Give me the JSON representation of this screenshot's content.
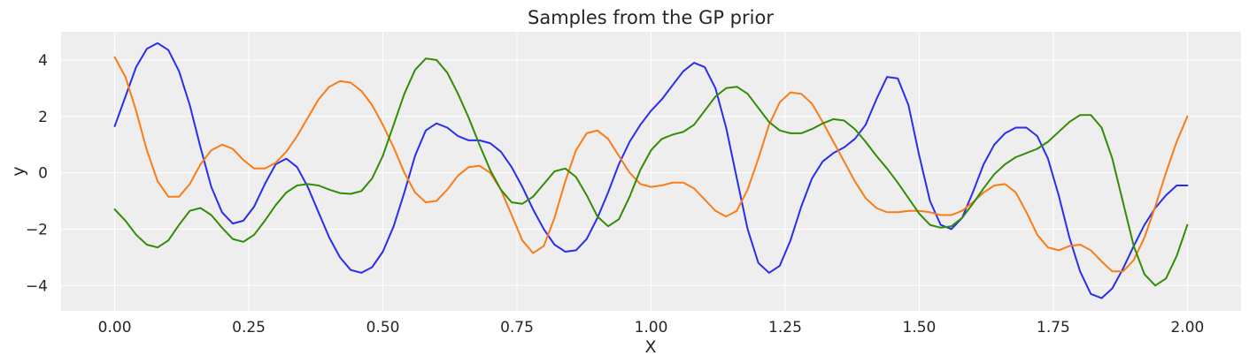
{
  "chart_data": {
    "type": "line",
    "title": "Samples from the GP prior",
    "xlabel": "X",
    "ylabel": "y",
    "xlim": [
      -0.1,
      2.1
    ],
    "ylim": [
      -4.9,
      5.0
    ],
    "grid": true,
    "x_ticks": [
      0.0,
      0.25,
      0.5,
      0.75,
      1.0,
      1.25,
      1.5,
      1.75,
      2.0
    ],
    "x_tick_labels": [
      "0.00",
      "0.25",
      "0.50",
      "0.75",
      "1.00",
      "1.25",
      "1.50",
      "1.75",
      "2.00"
    ],
    "y_ticks": [
      -4,
      -2,
      0,
      2,
      4
    ],
    "y_tick_labels": [
      "−4",
      "−2",
      "0",
      "2",
      "4"
    ],
    "series": [
      {
        "color": "#2a2eec",
        "points": [
          [
            0.0,
            1.65
          ],
          [
            0.02,
            2.7
          ],
          [
            0.04,
            3.75
          ],
          [
            0.06,
            4.4
          ],
          [
            0.08,
            4.6
          ],
          [
            0.1,
            4.35
          ],
          [
            0.12,
            3.6
          ],
          [
            0.14,
            2.4
          ],
          [
            0.16,
            0.9
          ],
          [
            0.18,
            -0.5
          ],
          [
            0.2,
            -1.4
          ],
          [
            0.22,
            -1.8
          ],
          [
            0.24,
            -1.7
          ],
          [
            0.26,
            -1.2
          ],
          [
            0.28,
            -0.4
          ],
          [
            0.3,
            0.3
          ],
          [
            0.32,
            0.5
          ],
          [
            0.34,
            0.2
          ],
          [
            0.36,
            -0.5
          ],
          [
            0.38,
            -1.4
          ],
          [
            0.4,
            -2.3
          ],
          [
            0.42,
            -3.0
          ],
          [
            0.44,
            -3.45
          ],
          [
            0.46,
            -3.55
          ],
          [
            0.48,
            -3.35
          ],
          [
            0.5,
            -2.8
          ],
          [
            0.52,
            -1.9
          ],
          [
            0.54,
            -0.7
          ],
          [
            0.56,
            0.6
          ],
          [
            0.58,
            1.5
          ],
          [
            0.6,
            1.75
          ],
          [
            0.62,
            1.6
          ],
          [
            0.64,
            1.3
          ],
          [
            0.66,
            1.15
          ],
          [
            0.68,
            1.15
          ],
          [
            0.7,
            1.05
          ],
          [
            0.72,
            0.75
          ],
          [
            0.74,
            0.2
          ],
          [
            0.76,
            -0.5
          ],
          [
            0.78,
            -1.3
          ],
          [
            0.8,
            -2.0
          ],
          [
            0.82,
            -2.55
          ],
          [
            0.84,
            -2.8
          ],
          [
            0.86,
            -2.75
          ],
          [
            0.88,
            -2.35
          ],
          [
            0.9,
            -1.6
          ],
          [
            0.92,
            -0.7
          ],
          [
            0.94,
            0.3
          ],
          [
            0.96,
            1.1
          ],
          [
            0.98,
            1.7
          ],
          [
            1.0,
            2.2
          ],
          [
            1.02,
            2.6
          ],
          [
            1.04,
            3.1
          ],
          [
            1.06,
            3.6
          ],
          [
            1.08,
            3.9
          ],
          [
            1.1,
            3.75
          ],
          [
            1.12,
            3.0
          ],
          [
            1.14,
            1.6
          ],
          [
            1.16,
            -0.2
          ],
          [
            1.18,
            -2.0
          ],
          [
            1.2,
            -3.2
          ],
          [
            1.22,
            -3.55
          ],
          [
            1.24,
            -3.3
          ],
          [
            1.26,
            -2.4
          ],
          [
            1.28,
            -1.2
          ],
          [
            1.3,
            -0.2
          ],
          [
            1.32,
            0.4
          ],
          [
            1.34,
            0.7
          ],
          [
            1.36,
            0.9
          ],
          [
            1.38,
            1.2
          ],
          [
            1.4,
            1.7
          ],
          [
            1.42,
            2.6
          ],
          [
            1.44,
            3.4
          ],
          [
            1.46,
            3.35
          ],
          [
            1.48,
            2.4
          ],
          [
            1.5,
            0.6
          ],
          [
            1.52,
            -1.0
          ],
          [
            1.54,
            -1.85
          ],
          [
            1.56,
            -2.0
          ],
          [
            1.58,
            -1.6
          ],
          [
            1.6,
            -0.7
          ],
          [
            1.62,
            0.3
          ],
          [
            1.64,
            1.0
          ],
          [
            1.66,
            1.4
          ],
          [
            1.68,
            1.6
          ],
          [
            1.7,
            1.6
          ],
          [
            1.72,
            1.3
          ],
          [
            1.74,
            0.5
          ],
          [
            1.76,
            -0.8
          ],
          [
            1.78,
            -2.3
          ],
          [
            1.8,
            -3.5
          ],
          [
            1.82,
            -4.3
          ],
          [
            1.84,
            -4.45
          ],
          [
            1.86,
            -4.1
          ],
          [
            1.88,
            -3.4
          ],
          [
            1.9,
            -2.6
          ],
          [
            1.92,
            -1.85
          ],
          [
            1.94,
            -1.25
          ],
          [
            1.96,
            -0.8
          ],
          [
            1.98,
            -0.45
          ],
          [
            2.0,
            -0.45
          ]
        ]
      },
      {
        "color": "#fa7c17",
        "points": [
          [
            0.0,
            4.1
          ],
          [
            0.02,
            3.4
          ],
          [
            0.04,
            2.2
          ],
          [
            0.06,
            0.8
          ],
          [
            0.08,
            -0.3
          ],
          [
            0.1,
            -0.85
          ],
          [
            0.12,
            -0.85
          ],
          [
            0.14,
            -0.4
          ],
          [
            0.16,
            0.3
          ],
          [
            0.18,
            0.8
          ],
          [
            0.2,
            1.0
          ],
          [
            0.22,
            0.85
          ],
          [
            0.24,
            0.45
          ],
          [
            0.26,
            0.15
          ],
          [
            0.28,
            0.15
          ],
          [
            0.3,
            0.35
          ],
          [
            0.32,
            0.75
          ],
          [
            0.34,
            1.3
          ],
          [
            0.36,
            1.95
          ],
          [
            0.38,
            2.6
          ],
          [
            0.4,
            3.05
          ],
          [
            0.42,
            3.25
          ],
          [
            0.44,
            3.2
          ],
          [
            0.46,
            2.9
          ],
          [
            0.48,
            2.4
          ],
          [
            0.5,
            1.7
          ],
          [
            0.52,
            0.9
          ],
          [
            0.54,
            0.0
          ],
          [
            0.56,
            -0.7
          ],
          [
            0.58,
            -1.05
          ],
          [
            0.6,
            -1.0
          ],
          [
            0.62,
            -0.6
          ],
          [
            0.64,
            -0.1
          ],
          [
            0.66,
            0.2
          ],
          [
            0.68,
            0.25
          ],
          [
            0.7,
            0.0
          ],
          [
            0.72,
            -0.6
          ],
          [
            0.74,
            -1.5
          ],
          [
            0.76,
            -2.4
          ],
          [
            0.78,
            -2.85
          ],
          [
            0.8,
            -2.6
          ],
          [
            0.82,
            -1.6
          ],
          [
            0.84,
            -0.3
          ],
          [
            0.86,
            0.8
          ],
          [
            0.88,
            1.4
          ],
          [
            0.9,
            1.5
          ],
          [
            0.92,
            1.2
          ],
          [
            0.94,
            0.6
          ],
          [
            0.96,
            0.0
          ],
          [
            0.98,
            -0.4
          ],
          [
            1.0,
            -0.5
          ],
          [
            1.02,
            -0.45
          ],
          [
            1.04,
            -0.35
          ],
          [
            1.06,
            -0.35
          ],
          [
            1.08,
            -0.55
          ],
          [
            1.1,
            -0.95
          ],
          [
            1.12,
            -1.35
          ],
          [
            1.14,
            -1.55
          ],
          [
            1.16,
            -1.35
          ],
          [
            1.18,
            -0.6
          ],
          [
            1.2,
            0.5
          ],
          [
            1.22,
            1.7
          ],
          [
            1.24,
            2.5
          ],
          [
            1.26,
            2.85
          ],
          [
            1.28,
            2.8
          ],
          [
            1.3,
            2.45
          ],
          [
            1.32,
            1.8
          ],
          [
            1.34,
            1.1
          ],
          [
            1.36,
            0.4
          ],
          [
            1.38,
            -0.3
          ],
          [
            1.4,
            -0.9
          ],
          [
            1.42,
            -1.25
          ],
          [
            1.44,
            -1.4
          ],
          [
            1.46,
            -1.4
          ],
          [
            1.48,
            -1.35
          ],
          [
            1.5,
            -1.35
          ],
          [
            1.52,
            -1.4
          ],
          [
            1.54,
            -1.5
          ],
          [
            1.56,
            -1.5
          ],
          [
            1.58,
            -1.35
          ],
          [
            1.6,
            -1.05
          ],
          [
            1.62,
            -0.7
          ],
          [
            1.64,
            -0.45
          ],
          [
            1.66,
            -0.4
          ],
          [
            1.68,
            -0.7
          ],
          [
            1.7,
            -1.4
          ],
          [
            1.72,
            -2.2
          ],
          [
            1.74,
            -2.65
          ],
          [
            1.76,
            -2.75
          ],
          [
            1.78,
            -2.6
          ],
          [
            1.8,
            -2.55
          ],
          [
            1.82,
            -2.75
          ],
          [
            1.84,
            -3.15
          ],
          [
            1.86,
            -3.5
          ],
          [
            1.88,
            -3.5
          ],
          [
            1.9,
            -3.1
          ],
          [
            1.92,
            -2.3
          ],
          [
            1.94,
            -1.2
          ],
          [
            1.96,
            0.0
          ],
          [
            1.98,
            1.1
          ],
          [
            2.0,
            2.0
          ]
        ]
      },
      {
        "color": "#328c06",
        "points": [
          [
            0.0,
            -1.3
          ],
          [
            0.02,
            -1.7
          ],
          [
            0.04,
            -2.2
          ],
          [
            0.06,
            -2.55
          ],
          [
            0.08,
            -2.65
          ],
          [
            0.1,
            -2.4
          ],
          [
            0.12,
            -1.85
          ],
          [
            0.14,
            -1.35
          ],
          [
            0.16,
            -1.25
          ],
          [
            0.18,
            -1.5
          ],
          [
            0.2,
            -1.95
          ],
          [
            0.22,
            -2.35
          ],
          [
            0.24,
            -2.45
          ],
          [
            0.26,
            -2.2
          ],
          [
            0.28,
            -1.7
          ],
          [
            0.3,
            -1.15
          ],
          [
            0.32,
            -0.7
          ],
          [
            0.34,
            -0.45
          ],
          [
            0.36,
            -0.4
          ],
          [
            0.38,
            -0.45
          ],
          [
            0.4,
            -0.6
          ],
          [
            0.42,
            -0.72
          ],
          [
            0.44,
            -0.75
          ],
          [
            0.46,
            -0.65
          ],
          [
            0.48,
            -0.2
          ],
          [
            0.5,
            0.6
          ],
          [
            0.52,
            1.7
          ],
          [
            0.54,
            2.8
          ],
          [
            0.56,
            3.65
          ],
          [
            0.58,
            4.05
          ],
          [
            0.6,
            4.0
          ],
          [
            0.62,
            3.55
          ],
          [
            0.64,
            2.8
          ],
          [
            0.66,
            1.95
          ],
          [
            0.68,
            1.0
          ],
          [
            0.7,
            0.1
          ],
          [
            0.72,
            -0.6
          ],
          [
            0.74,
            -1.05
          ],
          [
            0.76,
            -1.1
          ],
          [
            0.78,
            -0.85
          ],
          [
            0.8,
            -0.4
          ],
          [
            0.82,
            0.05
          ],
          [
            0.84,
            0.15
          ],
          [
            0.86,
            -0.15
          ],
          [
            0.88,
            -0.8
          ],
          [
            0.9,
            -1.55
          ],
          [
            0.92,
            -1.9
          ],
          [
            0.94,
            -1.65
          ],
          [
            0.96,
            -0.85
          ],
          [
            0.98,
            0.1
          ],
          [
            1.0,
            0.8
          ],
          [
            1.02,
            1.2
          ],
          [
            1.04,
            1.35
          ],
          [
            1.06,
            1.45
          ],
          [
            1.08,
            1.7
          ],
          [
            1.1,
            2.2
          ],
          [
            1.12,
            2.7
          ],
          [
            1.14,
            3.0
          ],
          [
            1.16,
            3.05
          ],
          [
            1.18,
            2.8
          ],
          [
            1.2,
            2.3
          ],
          [
            1.22,
            1.8
          ],
          [
            1.24,
            1.5
          ],
          [
            1.26,
            1.4
          ],
          [
            1.28,
            1.4
          ],
          [
            1.3,
            1.55
          ],
          [
            1.32,
            1.75
          ],
          [
            1.34,
            1.9
          ],
          [
            1.36,
            1.85
          ],
          [
            1.38,
            1.55
          ],
          [
            1.4,
            1.1
          ],
          [
            1.42,
            0.6
          ],
          [
            1.44,
            0.15
          ],
          [
            1.46,
            -0.35
          ],
          [
            1.48,
            -0.9
          ],
          [
            1.5,
            -1.45
          ],
          [
            1.52,
            -1.85
          ],
          [
            1.54,
            -1.95
          ],
          [
            1.56,
            -1.9
          ],
          [
            1.58,
            -1.6
          ],
          [
            1.6,
            -1.1
          ],
          [
            1.62,
            -0.55
          ],
          [
            1.64,
            -0.05
          ],
          [
            1.66,
            0.3
          ],
          [
            1.68,
            0.55
          ],
          [
            1.7,
            0.7
          ],
          [
            1.72,
            0.85
          ],
          [
            1.74,
            1.1
          ],
          [
            1.76,
            1.45
          ],
          [
            1.78,
            1.8
          ],
          [
            1.8,
            2.05
          ],
          [
            1.82,
            2.05
          ],
          [
            1.84,
            1.6
          ],
          [
            1.86,
            0.5
          ],
          [
            1.88,
            -1.05
          ],
          [
            1.9,
            -2.6
          ],
          [
            1.92,
            -3.6
          ],
          [
            1.94,
            -4.0
          ],
          [
            1.96,
            -3.75
          ],
          [
            1.98,
            -2.95
          ],
          [
            2.0,
            -1.85
          ]
        ]
      }
    ]
  }
}
